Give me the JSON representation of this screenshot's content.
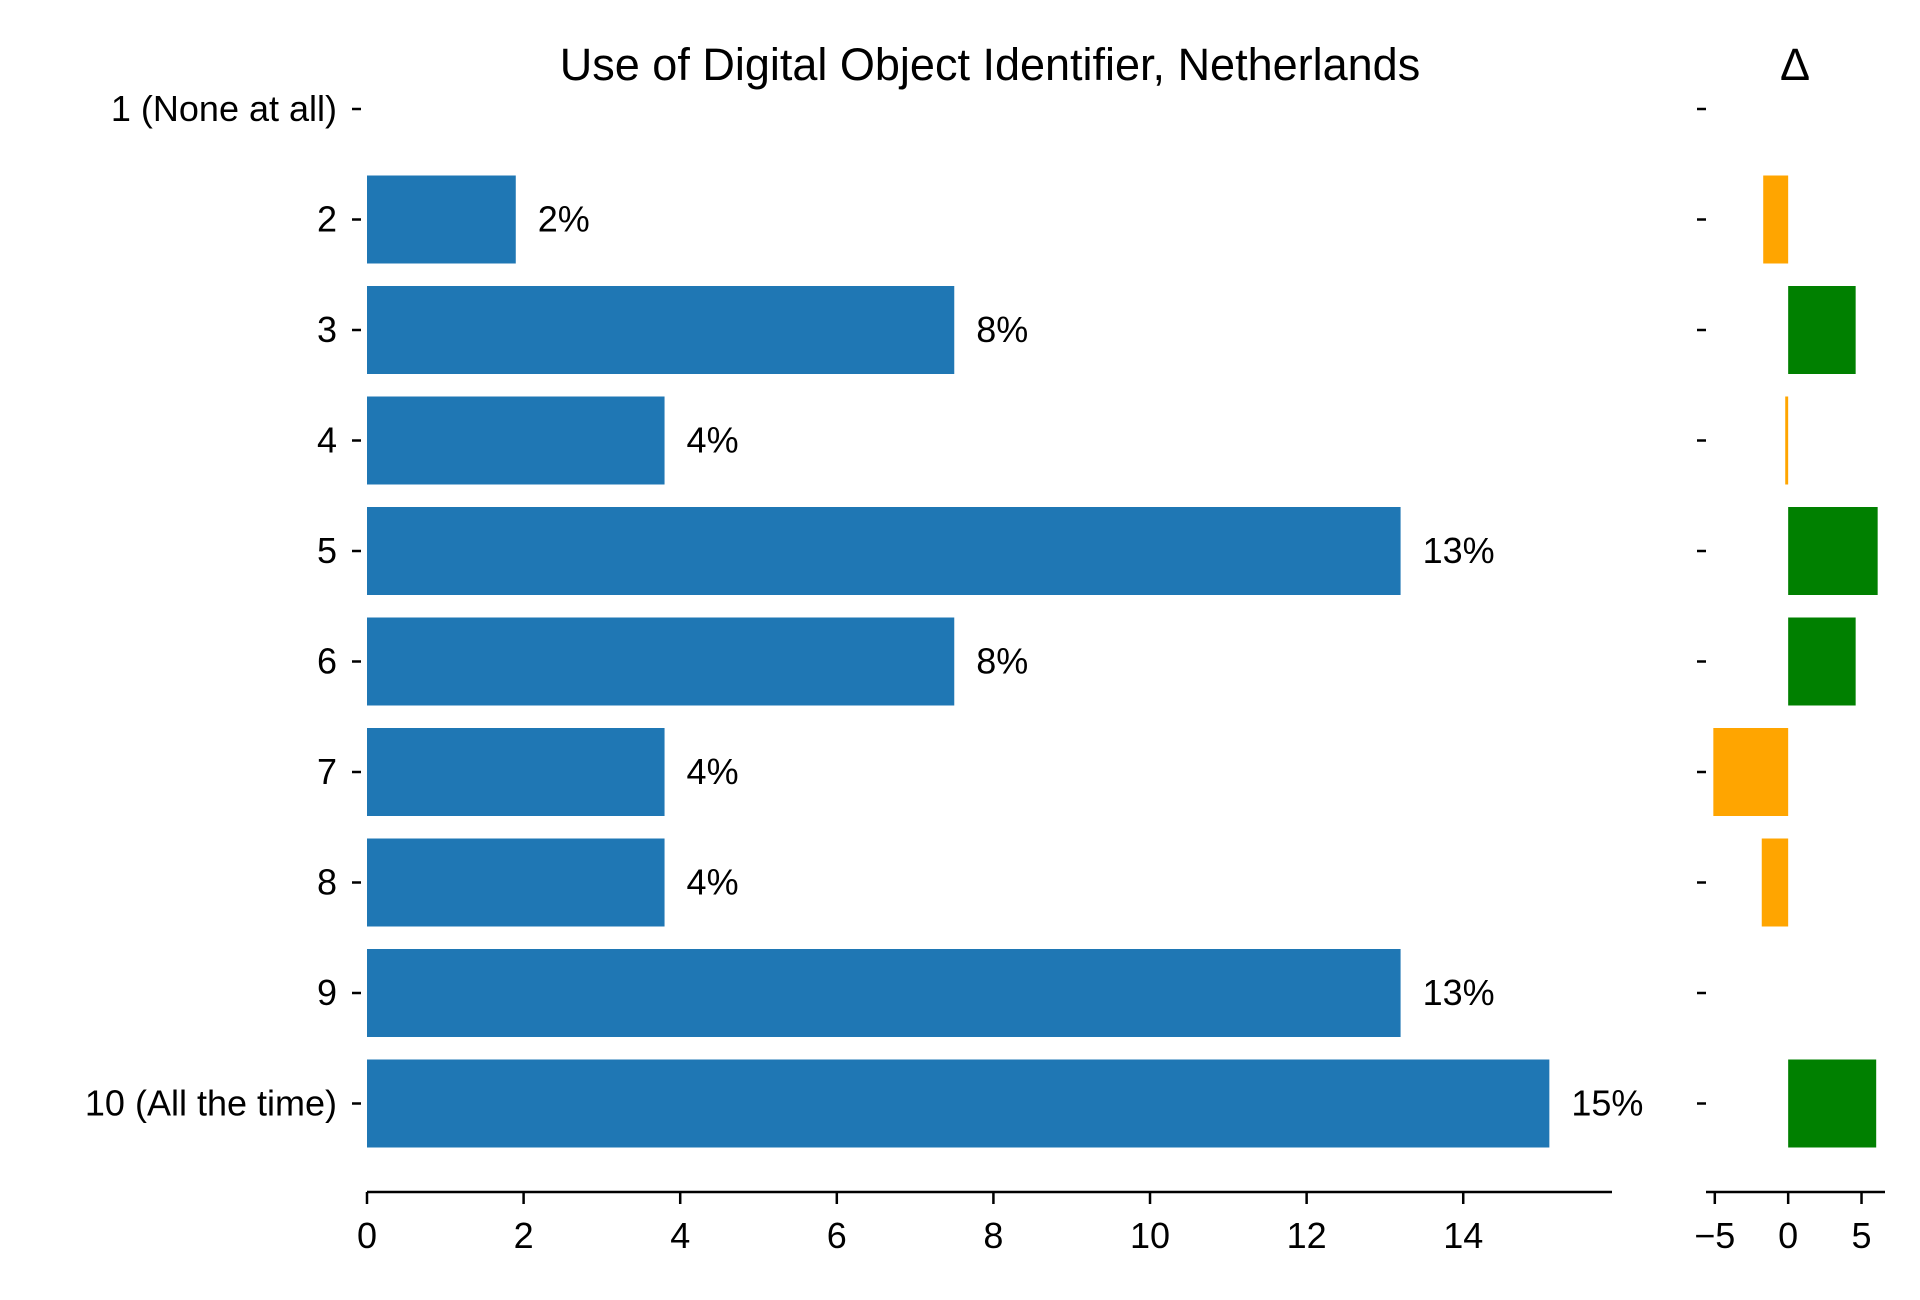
{
  "chart_data": [
    {
      "type": "bar",
      "orientation": "horizontal",
      "title": "Use of Digital Object Identifier, Netherlands",
      "xlabel": "",
      "ylabel": "",
      "categories": [
        "1 (None at all)",
        "2",
        "3",
        "4",
        "5",
        "6",
        "7",
        "8",
        "9",
        "10 (All the time)"
      ],
      "values": [
        0,
        1.9,
        7.5,
        3.8,
        13.2,
        7.5,
        3.8,
        3.8,
        13.2,
        15.1
      ],
      "value_labels": [
        "",
        "2%",
        "8%",
        "4%",
        "13%",
        "8%",
        "4%",
        "4%",
        "13%",
        "15%"
      ],
      "xlim": [
        0,
        15.9
      ],
      "xticks": [
        0,
        2,
        4,
        6,
        8,
        10,
        12,
        14
      ],
      "xtick_labels": [
        "0",
        "2",
        "4",
        "6",
        "8",
        "10",
        "12",
        "14"
      ],
      "bar_color": "#1f77b4",
      "grid": false
    },
    {
      "type": "bar",
      "orientation": "horizontal",
      "title": "Δ",
      "xlabel": "",
      "ylabel": "",
      "categories": [
        "1 (None at all)",
        "2",
        "3",
        "4",
        "5",
        "6",
        "7",
        "8",
        "9",
        "10 (All the time)"
      ],
      "values": [
        0,
        -1.7,
        4.6,
        -0.2,
        6.1,
        4.6,
        -5.1,
        -1.8,
        0,
        6.0
      ],
      "xlim": [
        -5.6,
        6.6
      ],
      "xticks": [
        -5,
        0,
        5
      ],
      "xtick_labels": [
        "−5",
        "0",
        "5"
      ],
      "positive_color": "#008000",
      "negative_color": "#ffa500",
      "grid": false
    }
  ]
}
